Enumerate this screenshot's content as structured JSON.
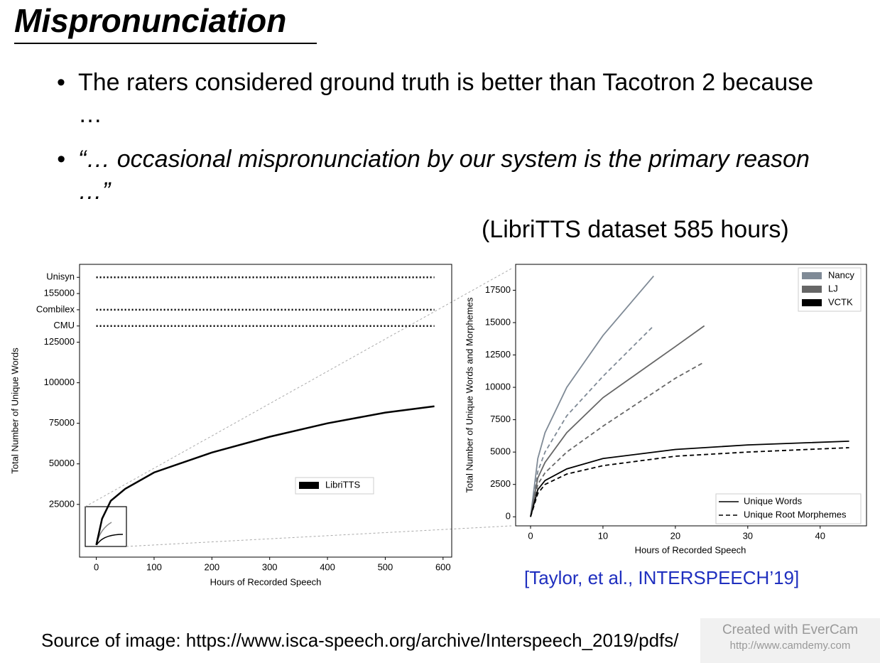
{
  "title": "Mispronunciation",
  "bullets": [
    "The raters considered ground truth is better than Tacotron 2 because …",
    "“… occasional mispronunciation by our system is the primary reason …”"
  ],
  "caption": "(LibriTTS dataset 585 hours)",
  "citation": "[Taylor, et al., INTERSPEECH’19]",
  "source": "Source of image: https://www.isca-speech.org/archive/Interspeech_2019/pdfs/",
  "watermark": [
    "Created with EverCam",
    "http://www.camdemy.com"
  ],
  "chart_data": [
    {
      "type": "line",
      "x_label": "Hours of Recorded Speech",
      "y_label": "Total Number of Unique Words",
      "xlim": [
        -29,
        615
      ],
      "ylim": [
        -7500,
        173000
      ],
      "xticks": [
        0,
        100,
        200,
        300,
        400,
        500,
        600
      ],
      "yticks": [
        25000,
        50000,
        75000,
        100000,
        125000,
        {
          "value": 135000,
          "label": "CMU"
        },
        {
          "value": 145000,
          "label": "Combilex"
        },
        155000,
        {
          "value": 165000,
          "label": "Unisyn"
        }
      ],
      "series": [
        {
          "name": "LibriTTS",
          "color": "#000000",
          "x": [
            0,
            10,
            25,
            50,
            100,
            200,
            300,
            400,
            500,
            585
          ],
          "values": [
            0,
            16200,
            27200,
            34600,
            44700,
            57000,
            66700,
            75000,
            81600,
            85500
          ]
        },
        {
          "color": "#000000",
          "dash": "dotted",
          "x": [
            0,
            585
          ],
          "values": [
            165000,
            165000
          ]
        },
        {
          "color": "#000000",
          "dash": "dotted",
          "x": [
            0,
            585
          ],
          "values": [
            145000,
            145000
          ]
        },
        {
          "color": "#000000",
          "dash": "dotted",
          "x": [
            0,
            585
          ],
          "values": [
            135000,
            135000
          ]
        }
      ]
    },
    {
      "type": "line",
      "x_label": "Hours of Recorded Speech",
      "y_label": "Total Number of Unique Words and Morphemes",
      "xlim": [
        -2.06,
        46.4
      ],
      "ylim": [
        -700,
        19500
      ],
      "xticks": [
        0,
        10,
        20,
        30,
        40
      ],
      "yticks": [
        0,
        2500,
        5000,
        7500,
        10000,
        12500,
        15000,
        17500
      ],
      "line_styles": [
        {
          "name": "Unique Words",
          "dash": "solid"
        },
        {
          "name": "Unique Root Morphemes",
          "dash": "dashed"
        }
      ],
      "series": [
        {
          "name": "Nancy",
          "color": "#7f8a96",
          "lines": [
            {
              "x": [
                0,
                1,
                2,
                5,
                10,
                17
              ],
              "values": [
                0,
                4500,
                6500,
                10000,
                14000,
                18600
              ]
            },
            {
              "x": [
                0,
                1,
                2,
                5,
                10,
                17
              ],
              "values": [
                0,
                3500,
                5000,
                7800,
                10850,
                14750
              ]
            }
          ]
        },
        {
          "name": "LJ",
          "color": "#666666",
          "lines": [
            {
              "x": [
                0,
                1,
                2,
                5,
                10,
                20,
                24
              ],
              "values": [
                0,
                3000,
                4200,
                6500,
                9200,
                13150,
                14750
              ]
            },
            {
              "x": [
                0,
                1,
                2,
                5,
                10,
                20,
                24
              ],
              "values": [
                0,
                2500,
                3400,
                5000,
                7000,
                10700,
                11950
              ]
            }
          ]
        },
        {
          "name": "VCTK",
          "color": "#000000",
          "lines": [
            {
              "x": [
                0,
                1,
                2,
                5,
                10,
                20,
                30,
                44
              ],
              "values": [
                0,
                2100,
                2800,
                3700,
                4500,
                5200,
                5550,
                5840
              ]
            },
            {
              "x": [
                0,
                1,
                2,
                5,
                10,
                20,
                30,
                44
              ],
              "values": [
                0,
                1800,
                2500,
                3300,
                3950,
                4680,
                5000,
                5340
              ]
            }
          ]
        }
      ]
    }
  ]
}
